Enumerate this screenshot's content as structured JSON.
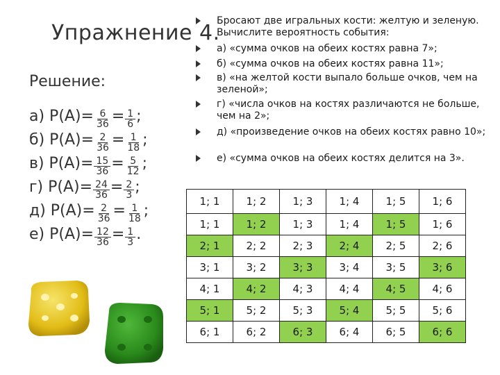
{
  "title": "Упражнение 4.",
  "solution_label": "Решение:",
  "answers": [
    {
      "prefix": "а) P(A)=",
      "frac1": {
        "num": "6",
        "den": "36"
      },
      "eq": "=",
      "frac2": {
        "num": "1",
        "den": "6"
      },
      "end": ";"
    },
    {
      "prefix": "б) P(A)=",
      "frac1": {
        "num": "2",
        "den": "36"
      },
      "eq": "=",
      "frac2": {
        "num": "1",
        "den": "18"
      },
      "end": ";"
    },
    {
      "prefix": "в) P(A)=",
      "frac1": {
        "num": "15",
        "den": "36"
      },
      "eq": "=",
      "frac2": {
        "num": "5",
        "den": "12"
      },
      "end": ";"
    },
    {
      "prefix": "г) P(A)=",
      "frac1": {
        "num": "24",
        "den": "36"
      },
      "eq": "=",
      "frac2": {
        "num": "2",
        "den": "3"
      },
      "end": ";"
    },
    {
      "prefix": "д) P(A)=",
      "frac1": {
        "num": "2",
        "den": "36"
      },
      "eq": "=",
      "frac2": {
        "num": "1",
        "den": "18"
      },
      "end": ";"
    },
    {
      "prefix": "е) P(A)=",
      "frac1": {
        "num": "12",
        "den": "36"
      },
      "eq": "=",
      "frac2": {
        "num": "1",
        "den": "3"
      },
      "end": "."
    }
  ],
  "bullets": [
    "Бросают две игральных кости: желтую и зеленую. Вычислите вероятность события:",
    "а) «сумма очков на обеих костях равна 7»;",
    "б) «сумма очков на обеих костях равна 11»;",
    "в) «на желтой кости выпало больше очков, чем на зеленой»;",
    "г) «числа очков на костях различаются не больше, чем на 2»;",
    "д) «произведение очков на обеих костях равно 10»;",
    "е) «сумма очков на обеих костях делится на 3»."
  ],
  "table": {
    "header": [
      "1; 1",
      "1; 2",
      "1; 3",
      "1; 4",
      "1; 5",
      "1; 6"
    ],
    "rows": [
      [
        "1; 1",
        "1; 2",
        "1; 3",
        "1; 4",
        "1; 5",
        "1; 6"
      ],
      [
        "2; 1",
        "2; 2",
        "2; 3",
        "2; 4",
        "2; 5",
        "2; 6"
      ],
      [
        "3; 1",
        "3; 2",
        "3; 3",
        "3; 4",
        "3; 5",
        "3; 6"
      ],
      [
        "4; 1",
        "4; 2",
        "4; 3",
        "4; 4",
        "4; 5",
        "4; 6"
      ],
      [
        "5; 1",
        "5; 2",
        "5; 3",
        "5; 4",
        "5; 5",
        "5; 6"
      ],
      [
        "6; 1",
        "6; 2",
        "6; 3",
        "6; 4",
        "6; 5",
        "6; 6"
      ]
    ],
    "highlighted": [
      [
        0,
        1
      ],
      [
        0,
        4
      ],
      [
        1,
        0
      ],
      [
        1,
        3
      ],
      [
        2,
        2
      ],
      [
        2,
        5
      ],
      [
        3,
        1
      ],
      [
        3,
        4
      ],
      [
        4,
        0
      ],
      [
        4,
        3
      ],
      [
        5,
        2
      ],
      [
        5,
        5
      ]
    ],
    "highlight_color": "#92d050"
  },
  "dice": [
    {
      "name": "yellow-die",
      "color": "#e6c21a"
    },
    {
      "name": "green-die",
      "color": "#2e8b1e"
    }
  ]
}
